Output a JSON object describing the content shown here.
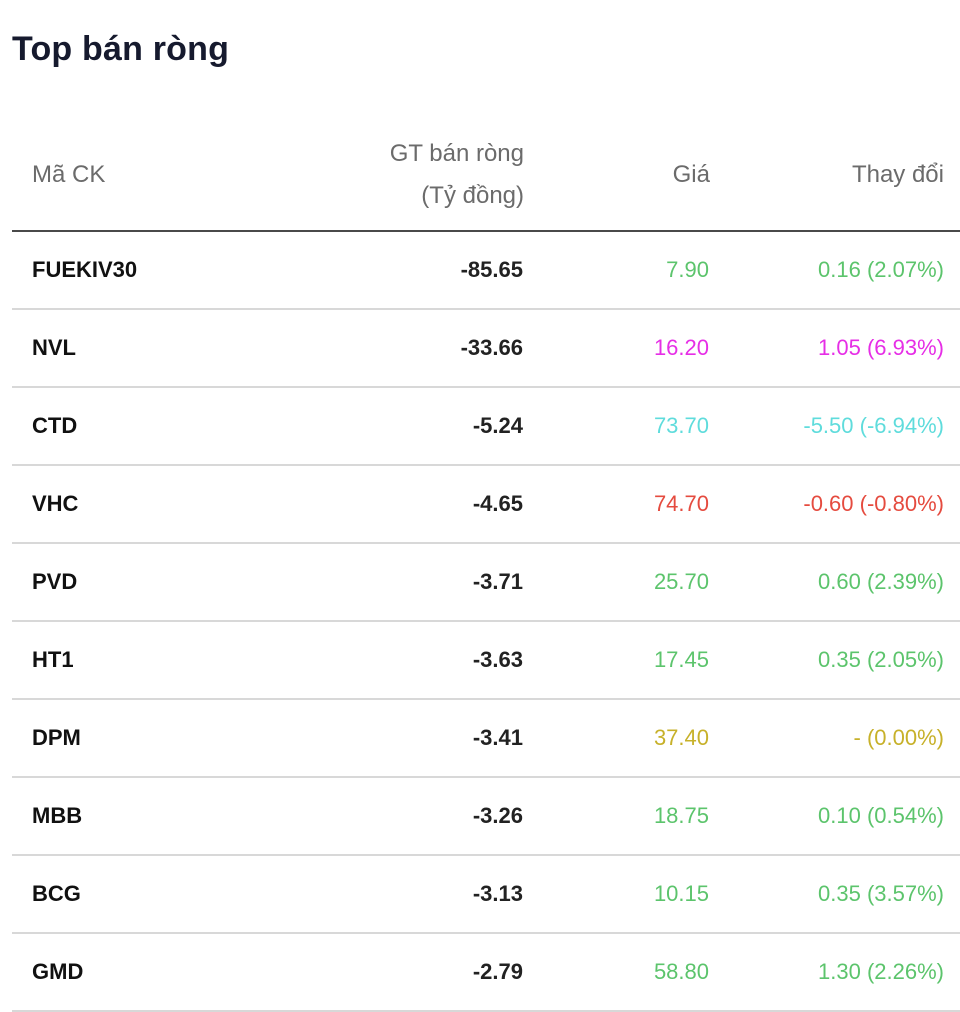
{
  "page": {
    "title": "Top bán ròng"
  },
  "table": {
    "headers": {
      "symbol": "Mã CK",
      "net_sell_line1": "GT bán ròng",
      "net_sell_line2": "(Tỷ đồng)",
      "price": "Giá",
      "change": "Thay đổi"
    },
    "rows": [
      {
        "symbol": "FUEKIV30",
        "net_sell": "-85.65",
        "price": "7.90",
        "change": "0.16 (2.07%)",
        "status": "up"
      },
      {
        "symbol": "NVL",
        "net_sell": "-33.66",
        "price": "16.20",
        "change": "1.05 (6.93%)",
        "status": "ceil"
      },
      {
        "symbol": "CTD",
        "net_sell": "-5.24",
        "price": "73.70",
        "change": "-5.50 (-6.94%)",
        "status": "floor"
      },
      {
        "symbol": "VHC",
        "net_sell": "-4.65",
        "price": "74.70",
        "change": "-0.60 (-0.80%)",
        "status": "down"
      },
      {
        "symbol": "PVD",
        "net_sell": "-3.71",
        "price": "25.70",
        "change": "0.60 (2.39%)",
        "status": "up"
      },
      {
        "symbol": "HT1",
        "net_sell": "-3.63",
        "price": "17.45",
        "change": "0.35 (2.05%)",
        "status": "up"
      },
      {
        "symbol": "DPM",
        "net_sell": "-3.41",
        "price": "37.40",
        "change": "- (0.00%)",
        "status": "ref"
      },
      {
        "symbol": "MBB",
        "net_sell": "-3.26",
        "price": "18.75",
        "change": "0.10 (0.54%)",
        "status": "up"
      },
      {
        "symbol": "BCG",
        "net_sell": "-3.13",
        "price": "10.15",
        "change": "0.35 (3.57%)",
        "status": "up"
      },
      {
        "symbol": "GMD",
        "net_sell": "-2.79",
        "price": "58.80",
        "change": "1.30 (2.26%)",
        "status": "up"
      }
    ]
  },
  "colors": {
    "up": "#5cc46c",
    "ceil": "#e62ee6",
    "floor": "#5fdcdc",
    "down": "#e54b3f",
    "ref": "#c7b12a"
  }
}
